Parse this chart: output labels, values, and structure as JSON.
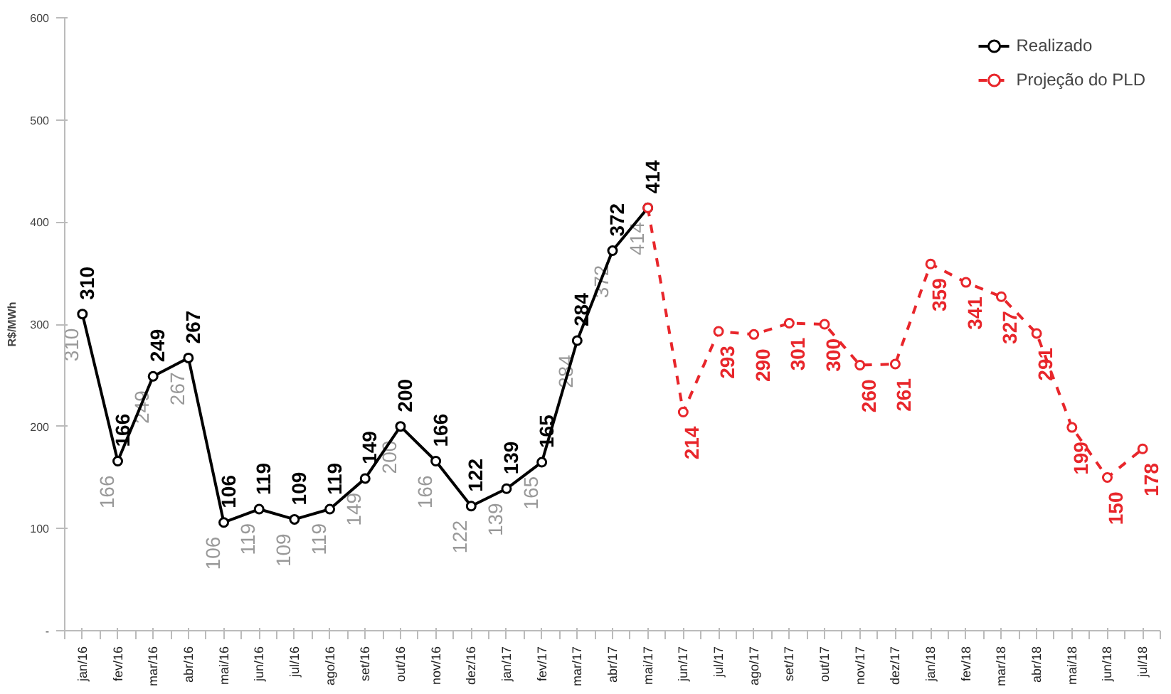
{
  "chart_data": {
    "type": "line",
    "ylabel": "R$/MWh",
    "categories": [
      "jan/16",
      "fev/16",
      "mar/16",
      "abr/16",
      "mai/16",
      "jun/16",
      "jul/16",
      "ago/16",
      "set/16",
      "out/16",
      "nov/16",
      "dez/16",
      "jan/17",
      "fev/17",
      "mar/17",
      "abr/17",
      "mai/17",
      "jun/17",
      "jul/17",
      "ago/17",
      "set/17",
      "out/17",
      "nov/17",
      "dez/17",
      "jan/18",
      "fev/18",
      "mar/18",
      "abr/18",
      "mai/18",
      "jun/18",
      "jul/18"
    ],
    "series": [
      {
        "name": "Realizado",
        "color": "#000000",
        "line_style": "solid",
        "values": [
          310,
          166,
          249,
          267,
          106,
          119,
          109,
          119,
          149,
          200,
          166,
          122,
          139,
          165,
          284,
          372,
          414,
          null,
          null,
          null,
          null,
          null,
          null,
          null,
          null,
          null,
          null,
          null,
          null,
          null,
          null
        ]
      },
      {
        "name": "Projeção do PLD",
        "color": "#e8262b",
        "line_style": "dashed",
        "values": [
          null,
          null,
          null,
          null,
          null,
          null,
          null,
          null,
          null,
          null,
          null,
          null,
          null,
          null,
          null,
          null,
          414,
          214,
          293,
          290,
          301,
          300,
          260,
          261,
          359,
          341,
          327,
          291,
          199,
          150,
          178
        ],
        "value_labels": [
          null,
          null,
          null,
          null,
          null,
          null,
          null,
          null,
          null,
          null,
          null,
          null,
          null,
          null,
          null,
          null,
          null,
          "214",
          "293",
          "290",
          "301",
          "300",
          "260",
          "261",
          "359",
          "341",
          "327",
          "291",
          "199",
          "150",
          "178"
        ]
      }
    ],
    "ylim": [
      0,
      600
    ],
    "yticks": [
      {
        "value": 0,
        "label": "-"
      },
      100,
      200,
      300,
      400,
      500,
      600
    ],
    "annotations": [
      {
        "text": "310",
        "x": "jan/16",
        "y": 310
      },
      {
        "text": "166",
        "x": "fev/16",
        "y": 166
      },
      {
        "text": "249",
        "x": "mar/16",
        "y": 249
      },
      {
        "text": "267",
        "x": "abr/16",
        "y": 267
      },
      {
        "text": "106",
        "x": "mai/16",
        "y": 106
      },
      {
        "text": "119",
        "x": "jun/16",
        "y": 119
      },
      {
        "text": "109",
        "x": "jul/16",
        "y": 109
      },
      {
        "text": "119",
        "x": "ago/16",
        "y": 119
      },
      {
        "text": "149",
        "x": "set/16",
        "y": 149
      },
      {
        "text": "200",
        "x": "out/16",
        "y": 200
      },
      {
        "text": "166",
        "x": "nov/16",
        "y": 166
      },
      {
        "text": "122",
        "x": "dez/16",
        "y": 122
      },
      {
        "text": "139",
        "x": "jan/17",
        "y": 139
      },
      {
        "text": "165",
        "x": "fev/17",
        "y": 165
      },
      {
        "text": "284",
        "x": "mar/17",
        "y": 284
      },
      {
        "text": "372",
        "x": "abr/17",
        "y": 372
      },
      {
        "text": "414",
        "x": "mai/17",
        "y": 414
      }
    ],
    "data_labels": true,
    "marker": "circle",
    "legend": "top right",
    "grid": false
  }
}
